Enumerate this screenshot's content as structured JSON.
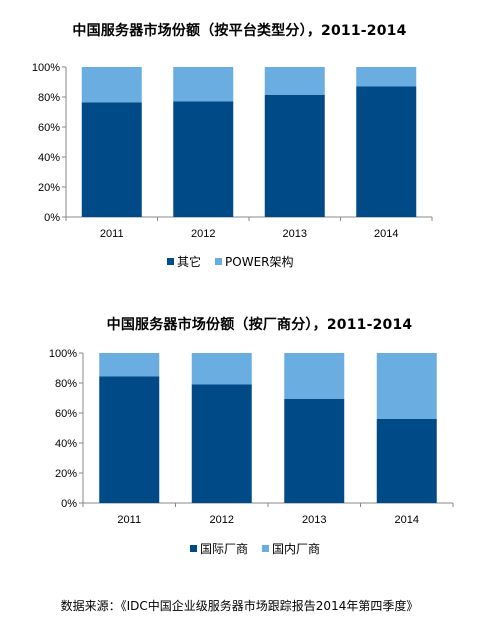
{
  "colors": {
    "dark": "#004b87",
    "light": "#6aade0",
    "axis": "#888888"
  },
  "chart_data": [
    {
      "type": "bar",
      "stacked": true,
      "percent": true,
      "title": "中国服务器市场份额（按平台类型分），2011-2014",
      "categories": [
        "2011",
        "2012",
        "2013",
        "2014"
      ],
      "ylim": [
        0,
        100
      ],
      "yticks": [
        "0%",
        "20%",
        "40%",
        "60%",
        "80%",
        "100%"
      ],
      "series": [
        {
          "name": "其它",
          "values": [
            76.5,
            77,
            81.5,
            87
          ]
        },
        {
          "name": "POWER架构",
          "values": [
            23.5,
            23,
            18.5,
            13
          ]
        }
      ],
      "legend_position": "bottom"
    },
    {
      "type": "bar",
      "stacked": true,
      "percent": true,
      "title": "中国服务器市场份额（按厂商分），2011-2014",
      "categories": [
        "2011",
        "2012",
        "2013",
        "2014"
      ],
      "ylim": [
        0,
        100
      ],
      "yticks": [
        "0%",
        "20%",
        "40%",
        "60%",
        "80%",
        "100%"
      ],
      "series": [
        {
          "name": "国际厂商",
          "values": [
            84.5,
            79,
            69.5,
            56
          ]
        },
        {
          "name": "国内厂商",
          "values": [
            15.5,
            21,
            30.5,
            44
          ]
        }
      ],
      "legend_position": "bottom"
    }
  ],
  "source": "数据来源：《IDC中国企业级服务器市场跟踪报告2014年第四季度》"
}
